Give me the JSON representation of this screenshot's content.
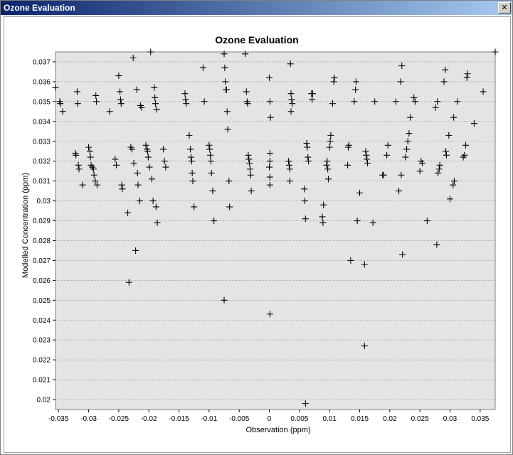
{
  "window": {
    "title": "Ozone Evaluation",
    "close_icon": "close-icon"
  },
  "colors": {
    "plot_bg": "#e4e4e4",
    "grid": "#8c8c8c",
    "marker": "#000000",
    "titlebar_start": "#0a246a",
    "titlebar_end": "#a6caf0"
  },
  "chart_data": {
    "type": "scatter",
    "title": "Ozone Evaluation",
    "xlabel": "Observation (ppm)",
    "ylabel": "Modelled Concentration (ppm)",
    "xlim": [
      -0.0355,
      0.0375
    ],
    "ylim": [
      0.0195,
      0.0375
    ],
    "grid": "horizontal",
    "xticks": [
      -0.035,
      -0.03,
      -0.025,
      -0.02,
      -0.015,
      -0.01,
      -0.005,
      0,
      0.005,
      0.01,
      0.015,
      0.02,
      0.025,
      0.03,
      0.035
    ],
    "xtick_labels": [
      "-0.035",
      "-0.03",
      "-0.025",
      "-0.02",
      "-0.015",
      "-0.01",
      "-0.005",
      "0",
      "0.005",
      "0.01",
      "0.015",
      "0.02",
      "0.025",
      "0.03",
      "0.035"
    ],
    "yticks": [
      0.02,
      0.021,
      0.022,
      0.023,
      0.024,
      0.025,
      0.026,
      0.027,
      0.028,
      0.029,
      0.03,
      0.031,
      0.032,
      0.033,
      0.034,
      0.035,
      0.036,
      0.037
    ],
    "ytick_labels": [
      "0.02",
      "0.021",
      "0.022",
      "0.023",
      "0.024",
      "0.025",
      "0.026",
      "0.027",
      "0.028",
      "0.029",
      "0.03",
      "0.031",
      "0.032",
      "0.033",
      "0.034",
      "0.035",
      "0.036",
      "0.037"
    ],
    "series": [
      {
        "marker": "plus",
        "points": [
          [
            -0.0355,
            0.0357
          ],
          [
            -0.0348,
            0.035
          ],
          [
            -0.0347,
            0.0349
          ],
          [
            -0.0343,
            0.0345
          ],
          [
            -0.0322,
            0.0324
          ],
          [
            -0.0321,
            0.0323
          ],
          [
            -0.0319,
            0.0355
          ],
          [
            -0.0318,
            0.0349
          ],
          [
            -0.0317,
            0.0318
          ],
          [
            -0.0316,
            0.0316
          ],
          [
            -0.031,
            0.0308
          ],
          [
            -0.03,
            0.0327
          ],
          [
            -0.0298,
            0.0325
          ],
          [
            -0.0297,
            0.0322
          ],
          [
            -0.0296,
            0.0318
          ],
          [
            -0.0294,
            0.0317
          ],
          [
            -0.0292,
            0.0316
          ],
          [
            -0.0291,
            0.0313
          ],
          [
            -0.0289,
            0.031
          ],
          [
            -0.0288,
            0.0353
          ],
          [
            -0.0287,
            0.035
          ],
          [
            -0.0286,
            0.0308
          ],
          [
            -0.0265,
            0.0345
          ],
          [
            -0.0256,
            0.0321
          ],
          [
            -0.0254,
            0.0318
          ],
          [
            -0.025,
            0.0363
          ],
          [
            -0.0248,
            0.0355
          ],
          [
            -0.0247,
            0.0351
          ],
          [
            -0.0246,
            0.0349
          ],
          [
            -0.0245,
            0.0308
          ],
          [
            -0.0244,
            0.0306
          ],
          [
            -0.0235,
            0.0294
          ],
          [
            -0.0233,
            0.0259
          ],
          [
            -0.023,
            0.0327
          ],
          [
            -0.0228,
            0.0326
          ],
          [
            -0.0226,
            0.0372
          ],
          [
            -0.0225,
            0.0319
          ],
          [
            -0.0222,
            0.0275
          ],
          [
            -0.022,
            0.0356
          ],
          [
            -0.0219,
            0.0314
          ],
          [
            -0.0218,
            0.0308
          ],
          [
            -0.0215,
            0.03
          ],
          [
            -0.0214,
            0.0348
          ],
          [
            -0.0212,
            0.0347
          ],
          [
            -0.0205,
            0.0328
          ],
          [
            -0.0203,
            0.0326
          ],
          [
            -0.0202,
            0.0325
          ],
          [
            -0.0201,
            0.0322
          ],
          [
            -0.0199,
            0.0317
          ],
          [
            -0.0197,
            0.0375
          ],
          [
            -0.0195,
            0.0311
          ],
          [
            -0.0193,
            0.03
          ],
          [
            -0.0191,
            0.0357
          ],
          [
            -0.019,
            0.0352
          ],
          [
            -0.0189,
            0.0349
          ],
          [
            -0.0188,
            0.0297
          ],
          [
            -0.0187,
            0.0346
          ],
          [
            -0.0186,
            0.0289
          ],
          [
            -0.0176,
            0.0326
          ],
          [
            -0.0174,
            0.032
          ],
          [
            -0.0172,
            0.0317
          ],
          [
            -0.014,
            0.0354
          ],
          [
            -0.0139,
            0.0351
          ],
          [
            -0.0138,
            0.0349
          ],
          [
            -0.0133,
            0.0333
          ],
          [
            -0.0131,
            0.0326
          ],
          [
            -0.013,
            0.0322
          ],
          [
            -0.0129,
            0.032
          ],
          [
            -0.0128,
            0.0314
          ],
          [
            -0.0127,
            0.031
          ],
          [
            -0.0125,
            0.0297
          ],
          [
            -0.011,
            0.0367
          ],
          [
            -0.0108,
            0.035
          ],
          [
            -0.01,
            0.0328
          ],
          [
            -0.0099,
            0.0326
          ],
          [
            -0.0098,
            0.0323
          ],
          [
            -0.0097,
            0.032
          ],
          [
            -0.0096,
            0.0314
          ],
          [
            -0.0094,
            0.0305
          ],
          [
            -0.0092,
            0.029
          ],
          [
            -0.0075,
            0.0374
          ],
          [
            -0.0074,
            0.0367
          ],
          [
            -0.0073,
            0.036
          ],
          [
            -0.0072,
            0.0356
          ],
          [
            -0.0071,
            0.0356
          ],
          [
            -0.007,
            0.0345
          ],
          [
            -0.0069,
            0.0336
          ],
          [
            -0.0067,
            0.031
          ],
          [
            -0.0066,
            0.0297
          ],
          [
            -0.0075,
            0.025
          ],
          [
            -0.004,
            0.0374
          ],
          [
            -0.0038,
            0.0355
          ],
          [
            -0.0037,
            0.035
          ],
          [
            -0.0036,
            0.0349
          ],
          [
            -0.0035,
            0.0323
          ],
          [
            -0.0034,
            0.0321
          ],
          [
            -0.0033,
            0.0319
          ],
          [
            -0.0032,
            0.0316
          ],
          [
            -0.0031,
            0.0313
          ],
          [
            -0.003,
            0.0305
          ],
          [
            0.0,
            0.0362
          ],
          [
            0.0001,
            0.035
          ],
          [
            0.0002,
            0.0342
          ],
          [
            0.0001,
            0.0324
          ],
          [
            0.0001,
            0.032
          ],
          [
            0.0,
            0.0317
          ],
          [
            0.0001,
            0.0312
          ],
          [
            0.0001,
            0.0308
          ],
          [
            0.0001,
            0.0243
          ],
          [
            0.0032,
            0.032
          ],
          [
            0.0033,
            0.0318
          ],
          [
            0.0034,
            0.0316
          ],
          [
            0.0034,
            0.031
          ],
          [
            0.0035,
            0.0369
          ],
          [
            0.0036,
            0.0354
          ],
          [
            0.0037,
            0.0351
          ],
          [
            0.0038,
            0.0349
          ],
          [
            0.0036,
            0.0345
          ],
          [
            0.0058,
            0.0306
          ],
          [
            0.0059,
            0.03
          ],
          [
            0.006,
            0.0291
          ],
          [
            0.0062,
            0.0329
          ],
          [
            0.0063,
            0.0327
          ],
          [
            0.0064,
            0.0322
          ],
          [
            0.0065,
            0.032
          ],
          [
            0.007,
            0.0354
          ],
          [
            0.0071,
            0.0351
          ],
          [
            0.0072,
            0.0354
          ],
          [
            0.006,
            0.0198
          ],
          [
            0.0088,
            0.0292
          ],
          [
            0.0089,
            0.0289
          ],
          [
            0.009,
            0.0298
          ],
          [
            0.0095,
            0.0318
          ],
          [
            0.0096,
            0.032
          ],
          [
            0.0097,
            0.0316
          ],
          [
            0.0098,
            0.0311
          ],
          [
            0.01,
            0.0327
          ],
          [
            0.0101,
            0.033
          ],
          [
            0.0102,
            0.0333
          ],
          [
            0.0105,
            0.0349
          ],
          [
            0.0107,
            0.036
          ],
          [
            0.0108,
            0.0362
          ],
          [
            0.013,
            0.0318
          ],
          [
            0.0131,
            0.0327
          ],
          [
            0.0132,
            0.0328
          ],
          [
            0.0135,
            0.027
          ],
          [
            0.0141,
            0.035
          ],
          [
            0.0143,
            0.0356
          ],
          [
            0.0144,
            0.036
          ],
          [
            0.0146,
            0.029
          ],
          [
            0.015,
            0.0304
          ],
          [
            0.0158,
            0.0268
          ],
          [
            0.0158,
            0.0227
          ],
          [
            0.016,
            0.0325
          ],
          [
            0.0161,
            0.0323
          ],
          [
            0.0162,
            0.0321
          ],
          [
            0.0163,
            0.0319
          ],
          [
            0.0172,
            0.0289
          ],
          [
            0.0175,
            0.035
          ],
          [
            0.0188,
            0.0313
          ],
          [
            0.019,
            0.0313
          ],
          [
            0.0195,
            0.0323
          ],
          [
            0.0197,
            0.0328
          ],
          [
            0.021,
            0.035
          ],
          [
            0.0215,
            0.0305
          ],
          [
            0.0218,
            0.036
          ],
          [
            0.0219,
            0.0313
          ],
          [
            0.022,
            0.0368
          ],
          [
            0.0221,
            0.0273
          ],
          [
            0.0226,
            0.0322
          ],
          [
            0.0228,
            0.0326
          ],
          [
            0.023,
            0.033
          ],
          [
            0.0232,
            0.0334
          ],
          [
            0.0234,
            0.0342
          ],
          [
            0.024,
            0.0352
          ],
          [
            0.0242,
            0.035
          ],
          [
            0.025,
            0.0315
          ],
          [
            0.0252,
            0.032
          ],
          [
            0.0254,
            0.0319
          ],
          [
            0.0262,
            0.029
          ],
          [
            0.0278,
            0.0278
          ],
          [
            0.028,
            0.0314
          ],
          [
            0.0282,
            0.0316
          ],
          [
            0.0283,
            0.0318
          ],
          [
            0.0276,
            0.0347
          ],
          [
            0.0279,
            0.035
          ],
          [
            0.029,
            0.036
          ],
          [
            0.0292,
            0.0366
          ],
          [
            0.0293,
            0.0325
          ],
          [
            0.0294,
            0.0323
          ],
          [
            0.0298,
            0.0333
          ],
          [
            0.03,
            0.0301
          ],
          [
            0.0305,
            0.0308
          ],
          [
            0.0307,
            0.031
          ],
          [
            0.0306,
            0.0342
          ],
          [
            0.0312,
            0.035
          ],
          [
            0.0322,
            0.0322
          ],
          [
            0.0324,
            0.0323
          ],
          [
            0.0326,
            0.0328
          ],
          [
            0.0328,
            0.0362
          ],
          [
            0.0329,
            0.0364
          ],
          [
            0.034,
            0.0339
          ],
          [
            0.0355,
            0.0355
          ],
          [
            0.0375,
            0.0375
          ]
        ]
      }
    ]
  }
}
